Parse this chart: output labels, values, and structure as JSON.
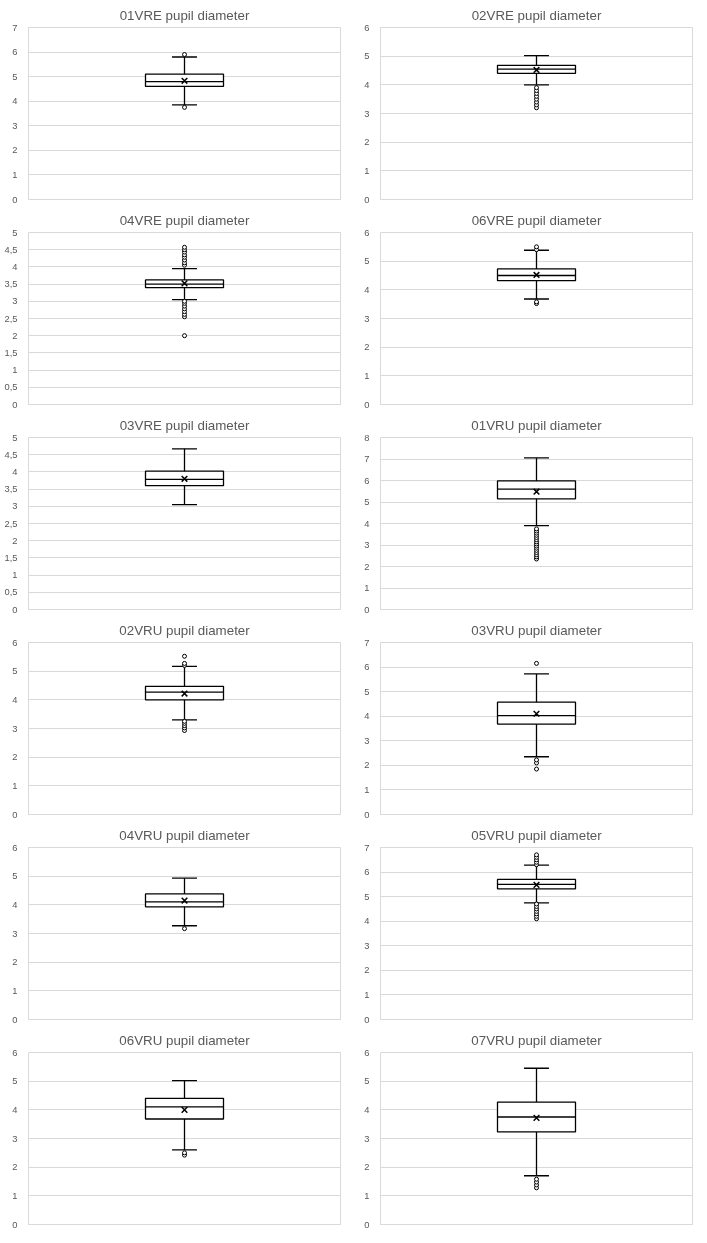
{
  "chart_data": [
    {
      "type": "box",
      "title": "01VRE pupil diameter",
      "categories": [
        null
      ],
      "tick_labels": "y",
      "grid": "y",
      "ylim": [
        0,
        7
      ],
      "yticks": [
        0,
        1,
        2,
        3,
        4,
        5,
        6,
        7
      ],
      "boxes": [
        {
          "low": 3.85,
          "q1": 4.6,
          "median": 4.8,
          "q3": 5.1,
          "high": 5.8,
          "mean": 4.83,
          "outliers": [
            3.75,
            5.9
          ]
        }
      ]
    },
    {
      "type": "box",
      "title": "02VRE pupil diameter",
      "categories": [
        null
      ],
      "tick_labels": "y",
      "grid": "y",
      "ylim": [
        0,
        6
      ],
      "yticks": [
        0,
        1,
        2,
        3,
        4,
        5,
        6
      ],
      "boxes": [
        {
          "low": 4.0,
          "q1": 4.4,
          "median": 4.55,
          "q3": 4.68,
          "high": 5.02,
          "mean": 4.52,
          "outliers": [
            3.2,
            3.3,
            3.4,
            3.5,
            3.6,
            3.7,
            3.8,
            3.9
          ]
        }
      ]
    },
    {
      "type": "box",
      "title": "04VRE pupil diameter",
      "categories": [
        null
      ],
      "tick_labels": "y",
      "grid": "y",
      "ylim": [
        0,
        5
      ],
      "yticks": [
        0,
        {
          "value": 0.5,
          "label": "0,5"
        },
        1,
        {
          "value": 1.5,
          "label": "1,5"
        },
        2,
        {
          "value": 2.5,
          "label": "2,5"
        },
        3,
        {
          "value": 3.5,
          "label": "3,5"
        },
        4,
        {
          "value": 4.5,
          "label": "4,5"
        },
        5
      ],
      "boxes": [
        {
          "low": 3.05,
          "q1": 3.4,
          "median": 3.5,
          "q3": 3.62,
          "high": 3.95,
          "mean": 3.52,
          "outliers": [
            2.0,
            2.55,
            2.62,
            2.7,
            2.78,
            2.86,
            2.94,
            3.0,
            4.05,
            4.12,
            4.2,
            4.28,
            4.35,
            4.43,
            4.5,
            4.57
          ]
        }
      ]
    },
    {
      "type": "box",
      "title": "06VRE pupil diameter",
      "categories": [
        null
      ],
      "tick_labels": "y",
      "grid": "y",
      "ylim": [
        0,
        6
      ],
      "yticks": [
        0,
        1,
        2,
        3,
        4,
        5,
        6
      ],
      "boxes": [
        {
          "low": 3.68,
          "q1": 4.32,
          "median": 4.5,
          "q3": 4.73,
          "high": 5.38,
          "mean": 4.52,
          "outliers": [
            3.52,
            3.58,
            5.4,
            5.5
          ]
        }
      ]
    },
    {
      "type": "box",
      "title": "03VRE pupil diameter",
      "categories": [
        null
      ],
      "tick_labels": "y",
      "grid": "y",
      "ylim": [
        0,
        5
      ],
      "yticks": [
        0,
        {
          "value": 0.5,
          "label": "0,5"
        },
        1,
        {
          "value": 1.5,
          "label": "1,5"
        },
        2,
        {
          "value": 2.5,
          "label": "2,5"
        },
        3,
        {
          "value": 3.5,
          "label": "3,5"
        },
        4,
        {
          "value": 4.5,
          "label": "4,5"
        },
        5
      ],
      "boxes": [
        {
          "low": 3.05,
          "q1": 3.6,
          "median": 3.78,
          "q3": 4.02,
          "high": 4.67,
          "mean": 3.8
        }
      ]
    },
    {
      "type": "box",
      "title": "01VRU pupil diameter",
      "categories": [
        null
      ],
      "tick_labels": "y",
      "grid": "y",
      "ylim": [
        0,
        8
      ],
      "yticks": [
        0,
        1,
        2,
        3,
        4,
        5,
        6,
        7,
        8
      ],
      "boxes": [
        {
          "low": 3.9,
          "q1": 5.15,
          "median": 5.6,
          "q3": 5.98,
          "high": 7.05,
          "mean": 5.48,
          "outliers": [
            2.35,
            2.45,
            2.55,
            2.65,
            2.75,
            2.85,
            2.95,
            3.05,
            3.15,
            3.25,
            3.35,
            3.45,
            3.55,
            3.65,
            3.75
          ]
        }
      ]
    },
    {
      "type": "box",
      "title": "02VRU pupil diameter",
      "categories": [
        null
      ],
      "tick_labels": "y",
      "grid": "y",
      "ylim": [
        0,
        6
      ],
      "yticks": [
        0,
        1,
        2,
        3,
        4,
        5,
        6
      ],
      "boxes": [
        {
          "low": 3.3,
          "q1": 4.0,
          "median": 4.27,
          "q3": 4.47,
          "high": 5.17,
          "mean": 4.22,
          "outliers": [
            2.93,
            3.02,
            3.1,
            3.18,
            3.25,
            5.2,
            5.27,
            5.52
          ]
        }
      ]
    },
    {
      "type": "box",
      "title": "03VRU pupil diameter",
      "categories": [
        null
      ],
      "tick_labels": "y",
      "grid": "y",
      "ylim": [
        0,
        7
      ],
      "yticks": [
        0,
        1,
        2,
        3,
        4,
        5,
        6,
        7
      ],
      "boxes": [
        {
          "low": 2.35,
          "q1": 3.68,
          "median": 4.02,
          "q3": 4.57,
          "high": 5.72,
          "mean": 4.1,
          "outliers": [
            1.85,
            2.1,
            2.22,
            6.15
          ]
        }
      ]
    },
    {
      "type": "box",
      "title": "04VRU pupil diameter",
      "categories": [
        null
      ],
      "tick_labels": "y",
      "grid": "y",
      "ylim": [
        0,
        6
      ],
      "yticks": [
        0,
        1,
        2,
        3,
        4,
        5,
        6
      ],
      "boxes": [
        {
          "low": 3.27,
          "q1": 3.93,
          "median": 4.1,
          "q3": 4.38,
          "high": 4.93,
          "mean": 4.15,
          "outliers": [
            3.17
          ]
        }
      ]
    },
    {
      "type": "box",
      "title": "05VRU pupil diameter",
      "categories": [
        null
      ],
      "tick_labels": "y",
      "grid": "y",
      "ylim": [
        0,
        7
      ],
      "yticks": [
        0,
        1,
        2,
        3,
        4,
        5,
        6,
        7
      ],
      "boxes": [
        {
          "low": 4.75,
          "q1": 5.32,
          "median": 5.5,
          "q3": 5.7,
          "high": 6.28,
          "mean": 5.48,
          "outliers": [
            4.1,
            4.2,
            4.3,
            4.4,
            4.5,
            4.6,
            4.7,
            6.3,
            6.4,
            6.5,
            6.6,
            6.7
          ]
        }
      ]
    },
    {
      "type": "box",
      "title": "06VRU pupil diameter",
      "categories": [
        null
      ],
      "tick_labels": "y",
      "grid": "y",
      "ylim": [
        0,
        6
      ],
      "yticks": [
        0,
        1,
        2,
        3,
        4,
        5,
        6
      ],
      "boxes": [
        {
          "low": 2.6,
          "q1": 3.68,
          "median": 4.1,
          "q3": 4.4,
          "high": 5.02,
          "mean": 4.0,
          "outliers": [
            2.42,
            2.5
          ]
        }
      ]
    },
    {
      "type": "box",
      "title": "07VRU pupil diameter",
      "categories": [
        null
      ],
      "tick_labels": "y",
      "grid": "y",
      "ylim": [
        0,
        6
      ],
      "yticks": [
        0,
        1,
        2,
        3,
        4,
        5,
        6
      ],
      "boxes": [
        {
          "low": 1.7,
          "q1": 3.23,
          "median": 3.75,
          "q3": 4.27,
          "high": 5.45,
          "mean": 3.72,
          "outliers": [
            1.28,
            1.38,
            1.48,
            1.58
          ]
        }
      ]
    }
  ]
}
